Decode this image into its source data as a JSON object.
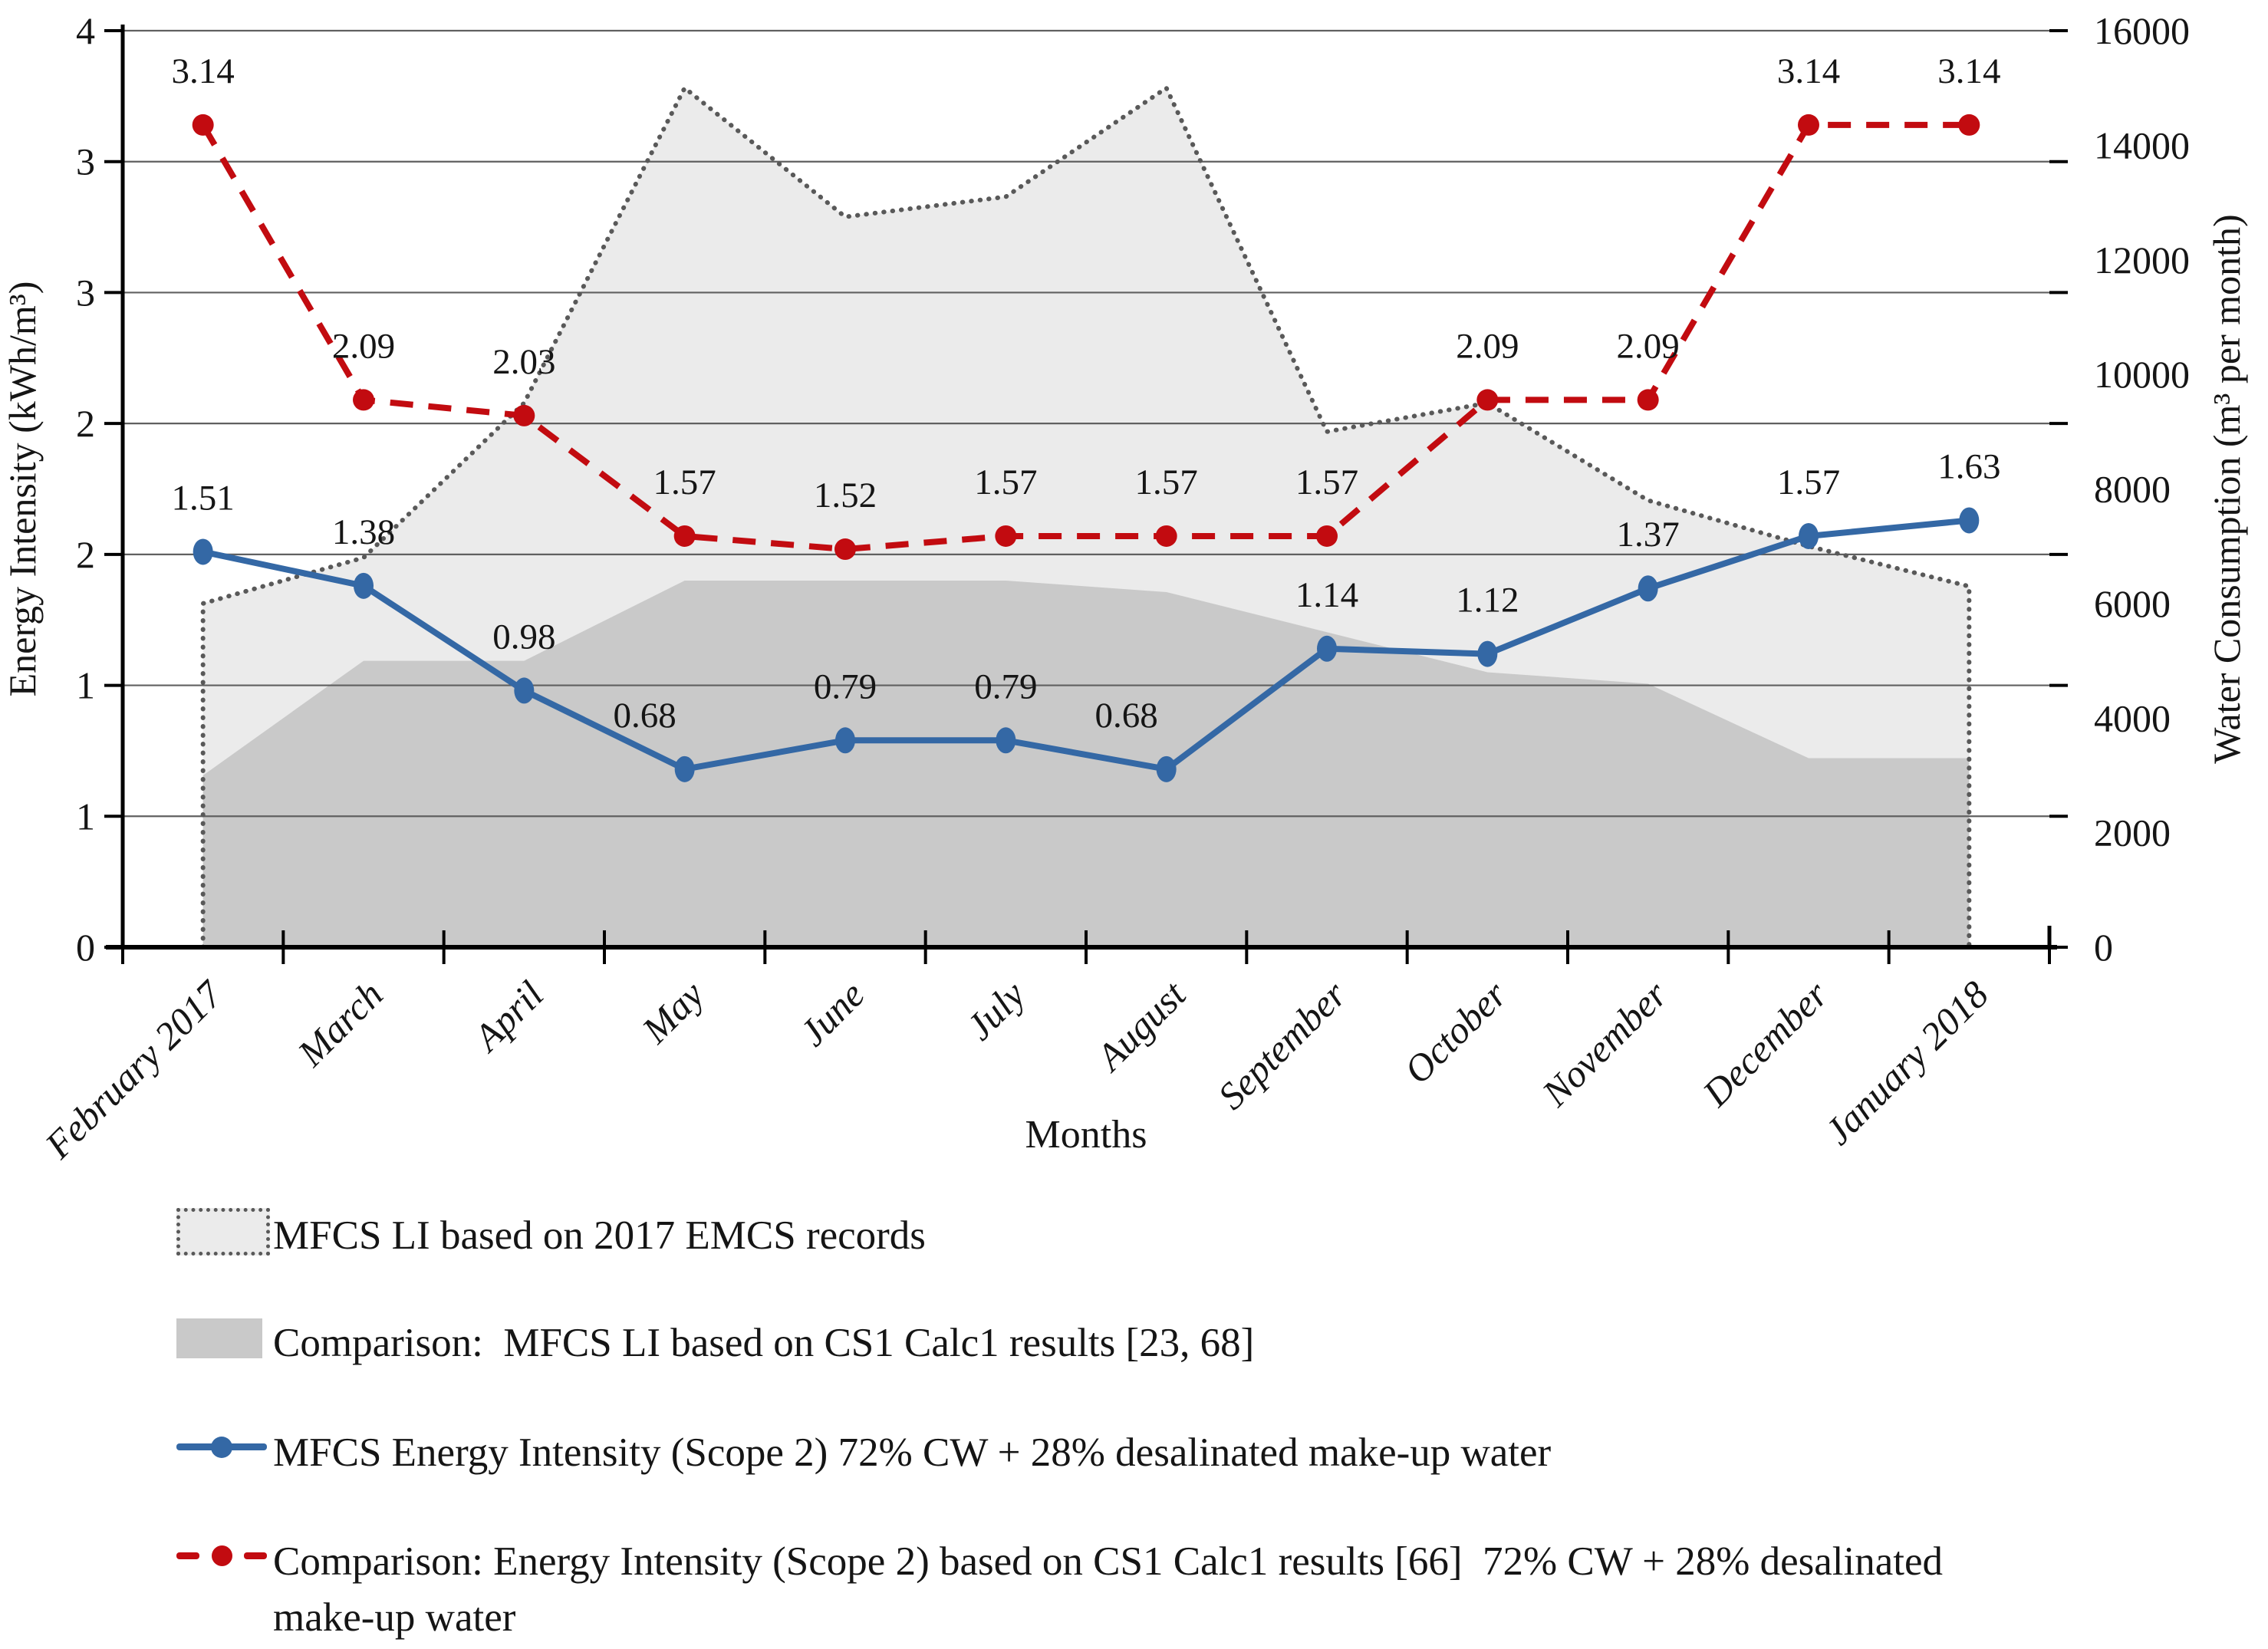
{
  "chart_data": {
    "type": "combo-area-line",
    "categories": [
      "February 2017",
      "March",
      "April",
      "May",
      "June",
      "July",
      "August",
      "September",
      "October",
      "November",
      "December",
      "January 2018"
    ],
    "x_axis_title": "Months",
    "left_axis": {
      "title": "Energy Intensity (kWh/m³)",
      "min": 0,
      "max": 3.5,
      "step": 0.5,
      "tick_labels_top_to_bottom": [
        "4",
        "3",
        "3",
        "2",
        "2",
        "1",
        "1",
        "0"
      ]
    },
    "right_axis": {
      "title": "Water Consumption (m³ per month)",
      "min": 0,
      "max": 16000,
      "step": 2000,
      "tick_labels_top_to_bottom": [
        "16000",
        "14000",
        "12000",
        "10000",
        "8000",
        "6000",
        "4000",
        "2000",
        "0"
      ]
    },
    "grid": true,
    "series": [
      {
        "name": "MFCS LI based on 2017 EMCS records",
        "type": "area",
        "axis": "right",
        "fill": "#ebebeb",
        "border_color": "#595959",
        "border_style": "dotted",
        "values": [
          6000,
          6800,
          9500,
          15000,
          12750,
          13100,
          15000,
          9000,
          9500,
          7800,
          7000,
          6300
        ]
      },
      {
        "name": "Comparison:  MFCS LI based on CS1 Calc1 results [23, 68]",
        "type": "area",
        "axis": "right",
        "fill": "#c9c9c9",
        "values": [
          3000,
          5000,
          5000,
          6400,
          6400,
          6400,
          6200,
          5500,
          4800,
          4600,
          3300,
          3300
        ]
      },
      {
        "name": "MFCS Energy Intensity (Scope 2) 72% CW + 28% desalinated make-up water",
        "type": "line",
        "axis": "left",
        "color": "#3468a5",
        "dash": "none",
        "marker": "ellipse",
        "values": [
          1.51,
          1.38,
          0.98,
          0.68,
          0.79,
          0.79,
          0.68,
          1.14,
          1.12,
          1.37,
          1.57,
          1.63
        ],
        "point_labels": [
          "1.51",
          "1.38",
          "0.98",
          "0.68",
          "0.79",
          "0.79",
          "0.68",
          "1.14",
          "1.12",
          "1.37",
          "1.57",
          "1.63"
        ],
        "label_dx": [
          0,
          0,
          0,
          -52,
          0,
          0,
          -52,
          0,
          0,
          0,
          0,
          0
        ],
        "label_dy": -55
      },
      {
        "name": "Comparison: Energy Intensity (Scope 2) based on CS1 Calc1 results [66]  72% CW + 28% desalinated make-up water",
        "type": "line",
        "axis": "left",
        "color": "#c20b10",
        "dash": "30 20",
        "marker": "circle",
        "values": [
          3.14,
          2.09,
          2.03,
          1.57,
          1.52,
          1.57,
          1.57,
          1.57,
          2.09,
          2.09,
          3.14,
          3.14
        ],
        "point_labels": [
          "3.14",
          "2.09",
          "2.03",
          "1.57",
          "1.52",
          "1.57",
          "1.57",
          "1.57",
          "2.09",
          "2.09",
          "3.14",
          "3.14"
        ],
        "label_dx": [
          0,
          0,
          0,
          0,
          0,
          0,
          0,
          0,
          0,
          0,
          0,
          0
        ],
        "label_dy": -55
      }
    ]
  },
  "legend": {
    "items": [
      {
        "label": "MFCS LI based on 2017 EMCS records"
      },
      {
        "label": "Comparison:  MFCS LI based on CS1 Calc1 results [23, 68]"
      },
      {
        "label": "MFCS Energy Intensity (Scope 2) 72% CW + 28% desalinated make-up water"
      },
      {
        "label_line1": "Comparison: Energy Intensity (Scope 2) based on CS1 Calc1 results [66]  72% CW + 28% desalinated",
        "label_line2": "make-up water"
      }
    ]
  },
  "colors": {
    "blue_line": "#3468a5",
    "red_line": "#c20b10",
    "area_light": "#ebebeb",
    "area_dark": "#c9c9c9",
    "area_border": "#595959",
    "gridline": "#606060",
    "axis": "#000000",
    "text": "#151515"
  }
}
